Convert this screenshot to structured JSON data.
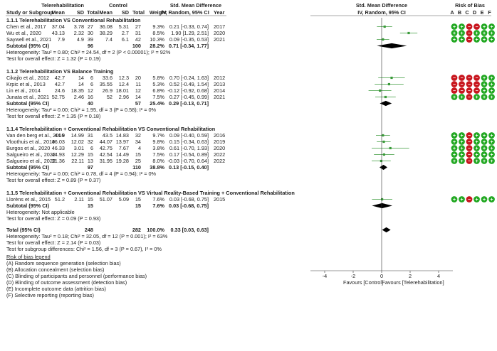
{
  "headers": {
    "study": "Study or Subgroup",
    "group1": "Telerehabilitation",
    "group2": "Control",
    "mean1": "Mean",
    "sd1": "SD",
    "total1": "Total",
    "mean2": "Mean",
    "sd2": "SD",
    "total2": "Total",
    "weight": "Weight",
    "effect_title": "Std. Mean Difference",
    "effect_sub": "IV, Random, 95% CI",
    "year": "Year",
    "plot_title": "Std. Mean Difference",
    "plot_sub": "IV, Random, 95% CI",
    "rob_title": "Risk of Bias",
    "rob_cols": [
      "A",
      "B",
      "C",
      "D",
      "E",
      "F"
    ]
  },
  "subgroups": [
    {
      "title": "1.1.1 Telerehabilitation VS Conventional Rehabilitation",
      "studies": [
        {
          "name": "Chen et al., 2017",
          "m1": "37.04",
          "sd1": "3.78",
          "n1": "27",
          "m2": "36.08",
          "sd2": "5.31",
          "n2": "27",
          "w": "9.3%",
          "ci": "0.21 [-0.33, 0.74]",
          "year": "2017",
          "smd": 0.21,
          "lo": -0.33,
          "hi": 0.74,
          "rob": [
            "g",
            "g",
            "r",
            "r",
            "g",
            "g"
          ]
        },
        {
          "name": "Wu et al., 2020",
          "m1": "43.13",
          "sd1": "2.32",
          "n1": "30",
          "m2": "38.29",
          "sd2": "2.7",
          "n2": "31",
          "w": "8.5%",
          "ci": "1.90 [1.29, 2.51]",
          "year": "2020",
          "smd": 1.9,
          "lo": 1.29,
          "hi": 2.51,
          "rob": [
            "g",
            "g",
            "r",
            "g",
            "g",
            "g"
          ]
        },
        {
          "name": "Saywell et al., 2021",
          "m1": "7.9",
          "sd1": "4.9",
          "n1": "39",
          "m2": "7.4",
          "sd2": "6.1",
          "n2": "42",
          "w": "10.3%",
          "ci": "0.09 [-0.35, 0.53]",
          "year": "2021",
          "smd": 0.09,
          "lo": -0.35,
          "hi": 0.53,
          "rob": [
            "g",
            "g",
            "r",
            "g",
            "g",
            "g"
          ]
        }
      ],
      "subtotal": {
        "label": "Subtotal (95% CI)",
        "n1": "96",
        "n2": "100",
        "w": "28.2%",
        "ci": "0.71 [-0.34, 1.77]",
        "smd": 0.71,
        "lo": -0.34,
        "hi": 1.77
      },
      "het": "Heterogeneity: Tau² = 0.80; Chi² = 24.54, df = 2 (P < 0.00001); I² = 92%",
      "test": "Test for overall effect: Z = 1.32 (P = 0.19)"
    },
    {
      "title": "1.1.2 Telerehabilitation VS Balance Training",
      "studies": [
        {
          "name": "Cikajlo et al., 2012",
          "m1": "42.7",
          "sd1": "14",
          "n1": "6",
          "m2": "33.6",
          "sd2": "12.3",
          "n2": "20",
          "w": "5.8%",
          "ci": "0.70 [-0.24, 1.63]",
          "year": "2012",
          "smd": 0.7,
          "lo": -0.24,
          "hi": 1.63,
          "rob": [
            "r",
            "r",
            "r",
            "r",
            "g",
            "g"
          ]
        },
        {
          "name": "Krpic et al., 2013",
          "m1": "42.7",
          "sd1": "14",
          "n1": "6",
          "m2": "35.55",
          "sd2": "12.4",
          "n2": "11",
          "w": "5.3%",
          "ci": "0.52 [-0.49, 1.54]",
          "year": "2013",
          "smd": 0.52,
          "lo": -0.49,
          "hi": 1.54,
          "rob": [
            "r",
            "r",
            "r",
            "r",
            "g",
            "g"
          ]
        },
        {
          "name": "Lin et al., 2014",
          "m1": "24.6",
          "sd1": "18.35",
          "n1": "12",
          "m2": "26.9",
          "sd2": "18.01",
          "n2": "12",
          "w": "6.8%",
          "ci": "-0.12 [-0.92, 0.68]",
          "year": "2014",
          "smd": -0.12,
          "lo": -0.92,
          "hi": 0.68,
          "rob": [
            "r",
            "r",
            "r",
            "r",
            "g",
            "g"
          ]
        },
        {
          "name": "Junata et al., 2021",
          "m1": "52.75",
          "sd1": "2.46",
          "n1": "16",
          "m2": "52",
          "sd2": "2.96",
          "n2": "14",
          "w": "7.5%",
          "ci": "0.27 [-0.45, 0.99]",
          "year": "2021",
          "smd": 0.27,
          "lo": -0.45,
          "hi": 0.99,
          "rob": [
            "g",
            "g",
            "r",
            "g",
            "g",
            "g"
          ]
        }
      ],
      "subtotal": {
        "label": "Subtotal (95% CI)",
        "n1": "40",
        "n2": "57",
        "w": "25.4%",
        "ci": "0.29 [-0.13, 0.71]",
        "smd": 0.29,
        "lo": -0.13,
        "hi": 0.71
      },
      "het": "Heterogeneity: Tau² = 0.00; Chi² = 1.95, df = 3 (P = 0.58); I² = 0%",
      "test": "Test for overall effect: Z = 1.35 (P = 0.18)"
    },
    {
      "title": "1.1.4 Telerehabilitation + Conventional Rehabilitation VS Conventional Rehabilitation",
      "studies": [
        {
          "name": "Van den berg et al., 2016",
          "m1": "44.9",
          "sd1": "14.99",
          "n1": "31",
          "m2": "43.5",
          "sd2": "14.83",
          "n2": "32",
          "w": "9.7%",
          "ci": "0.09 [-0.40, 0.59]",
          "year": "2016",
          "smd": 0.09,
          "lo": -0.4,
          "hi": 0.59,
          "rob": [
            "g",
            "g",
            "r",
            "g",
            "g",
            "g"
          ]
        },
        {
          "name": "Vloothuis et al., 2019",
          "m1": "46.03",
          "sd1": "12.02",
          "n1": "32",
          "m2": "44.07",
          "sd2": "13.97",
          "n2": "34",
          "w": "9.8%",
          "ci": "0.15 [-0.34, 0.63]",
          "year": "2019",
          "smd": 0.15,
          "lo": -0.34,
          "hi": 0.63,
          "rob": [
            "g",
            "g",
            "r",
            "g",
            "g",
            "g"
          ]
        },
        {
          "name": "Burgos et al., 2020",
          "m1": "46.33",
          "sd1": "3.01",
          "n1": "6",
          "m2": "42.75",
          "sd2": "7.67",
          "n2": "4",
          "w": "3.8%",
          "ci": "0.61 [-0.70, 1.93]",
          "year": "2020",
          "smd": 0.61,
          "lo": -0.7,
          "hi": 1.93,
          "rob": [
            "g",
            "g",
            "r",
            "g",
            "g",
            "g"
          ]
        },
        {
          "name": "Salgueiro et al., 2022",
          "m1": "44.93",
          "sd1": "12.29",
          "n1": "15",
          "m2": "42.54",
          "sd2": "14.49",
          "n2": "15",
          "w": "7.5%",
          "ci": "0.17 [-0.54, 0.89]",
          "year": "2022",
          "smd": 0.17,
          "lo": -0.54,
          "hi": 0.89,
          "rob": [
            "g",
            "g",
            "r",
            "g",
            "g",
            "g"
          ]
        },
        {
          "name": "Salgueiro et al., 2022.",
          "m1": "31.36",
          "sd1": "22.11",
          "n1": "13",
          "m2": "31.95",
          "sd2": "19.28",
          "n2": "25",
          "w": "8.0%",
          "ci": "-0.03 [-0.70, 0.64]",
          "year": "2022",
          "smd": -0.03,
          "lo": -0.7,
          "hi": 0.64,
          "rob": [
            "g",
            "g",
            "r",
            "g",
            "g",
            "g"
          ]
        }
      ],
      "subtotal": {
        "label": "Subtotal (95% CI)",
        "n1": "97",
        "n2": "110",
        "w": "38.8%",
        "ci": "0.13 [-0.15, 0.40]",
        "smd": 0.13,
        "lo": -0.15,
        "hi": 0.4
      },
      "het": "Heterogeneity: Tau² = 0.00; Chi² = 0.78, df = 4 (P = 0.94); I² = 0%",
      "test": "Test for overall effect: Z = 0.89 (P = 0.37)"
    },
    {
      "title": "1.1.5 Telerehabilitation + Conventional Rehabilitation VS Virtual Reality-Based Training + Conventional Rehabilitation",
      "studies": [
        {
          "name": "Llorèns et al., 2015",
          "m1": "51.2",
          "sd1": "2.11",
          "n1": "15",
          "m2": "51.07",
          "sd2": "5.09",
          "n2": "15",
          "w": "7.6%",
          "ci": "0.03 [-0.68, 0.75]",
          "year": "2015",
          "smd": 0.03,
          "lo": -0.68,
          "hi": 0.75,
          "rob": [
            "g",
            "g",
            "r",
            "g",
            "g",
            "g"
          ]
        }
      ],
      "subtotal": {
        "label": "Subtotal (95% CI)",
        "n1": "15",
        "n2": "15",
        "w": "7.6%",
        "ci": "0.03 [-0.68, 0.75]",
        "smd": 0.03,
        "lo": -0.68,
        "hi": 0.75
      },
      "het": "Heterogeneity: Not applicable",
      "test": "Test for overall effect: Z = 0.09 (P = 0.93)"
    }
  ],
  "total": {
    "label": "Total (95% CI)",
    "n1": "248",
    "n2": "282",
    "w": "100.0%",
    "ci": "0.33 [0.03, 0.63]",
    "smd": 0.33,
    "lo": 0.03,
    "hi": 0.63
  },
  "total_het": "Heterogeneity: Tau² = 0.18; Chi² = 32.05, df = 12 (P = 0.001); I² = 63%",
  "total_test": "Test for overall effect: Z = 2.14 (P = 0.03)",
  "subgroup_test": "Test for subgroup differences: Chi² = 1.56, df = 3 (P = 0.67), I² = 0%",
  "axis": {
    "ticks": [
      "-4",
      "-2",
      "0",
      "2",
      "4"
    ],
    "tick_values": [
      -4,
      -2,
      0,
      2,
      4
    ],
    "min": -5,
    "max": 5,
    "left_label": "Favours [Control]",
    "right_label": "Favours [Telerehabilitation]"
  },
  "legend": {
    "title": "Risk of bias legend",
    "items": [
      "(A) Random sequence generation (selection bias)",
      "(B) Allocation concealment (selection bias)",
      "(C) Blinding of participants and personnel (performance bias)",
      "(D) Blinding of outcome assessment (detection bias)",
      "(E) Incomplete outcome data (attrition bias)",
      "(F) Selective reporting (reporting bias)"
    ]
  },
  "colors": {
    "study_marker": "#3a9a3a",
    "low_risk": "#22a822",
    "high_risk": "#c8161e",
    "diamond": "#000000",
    "header_rule": "#555555"
  }
}
